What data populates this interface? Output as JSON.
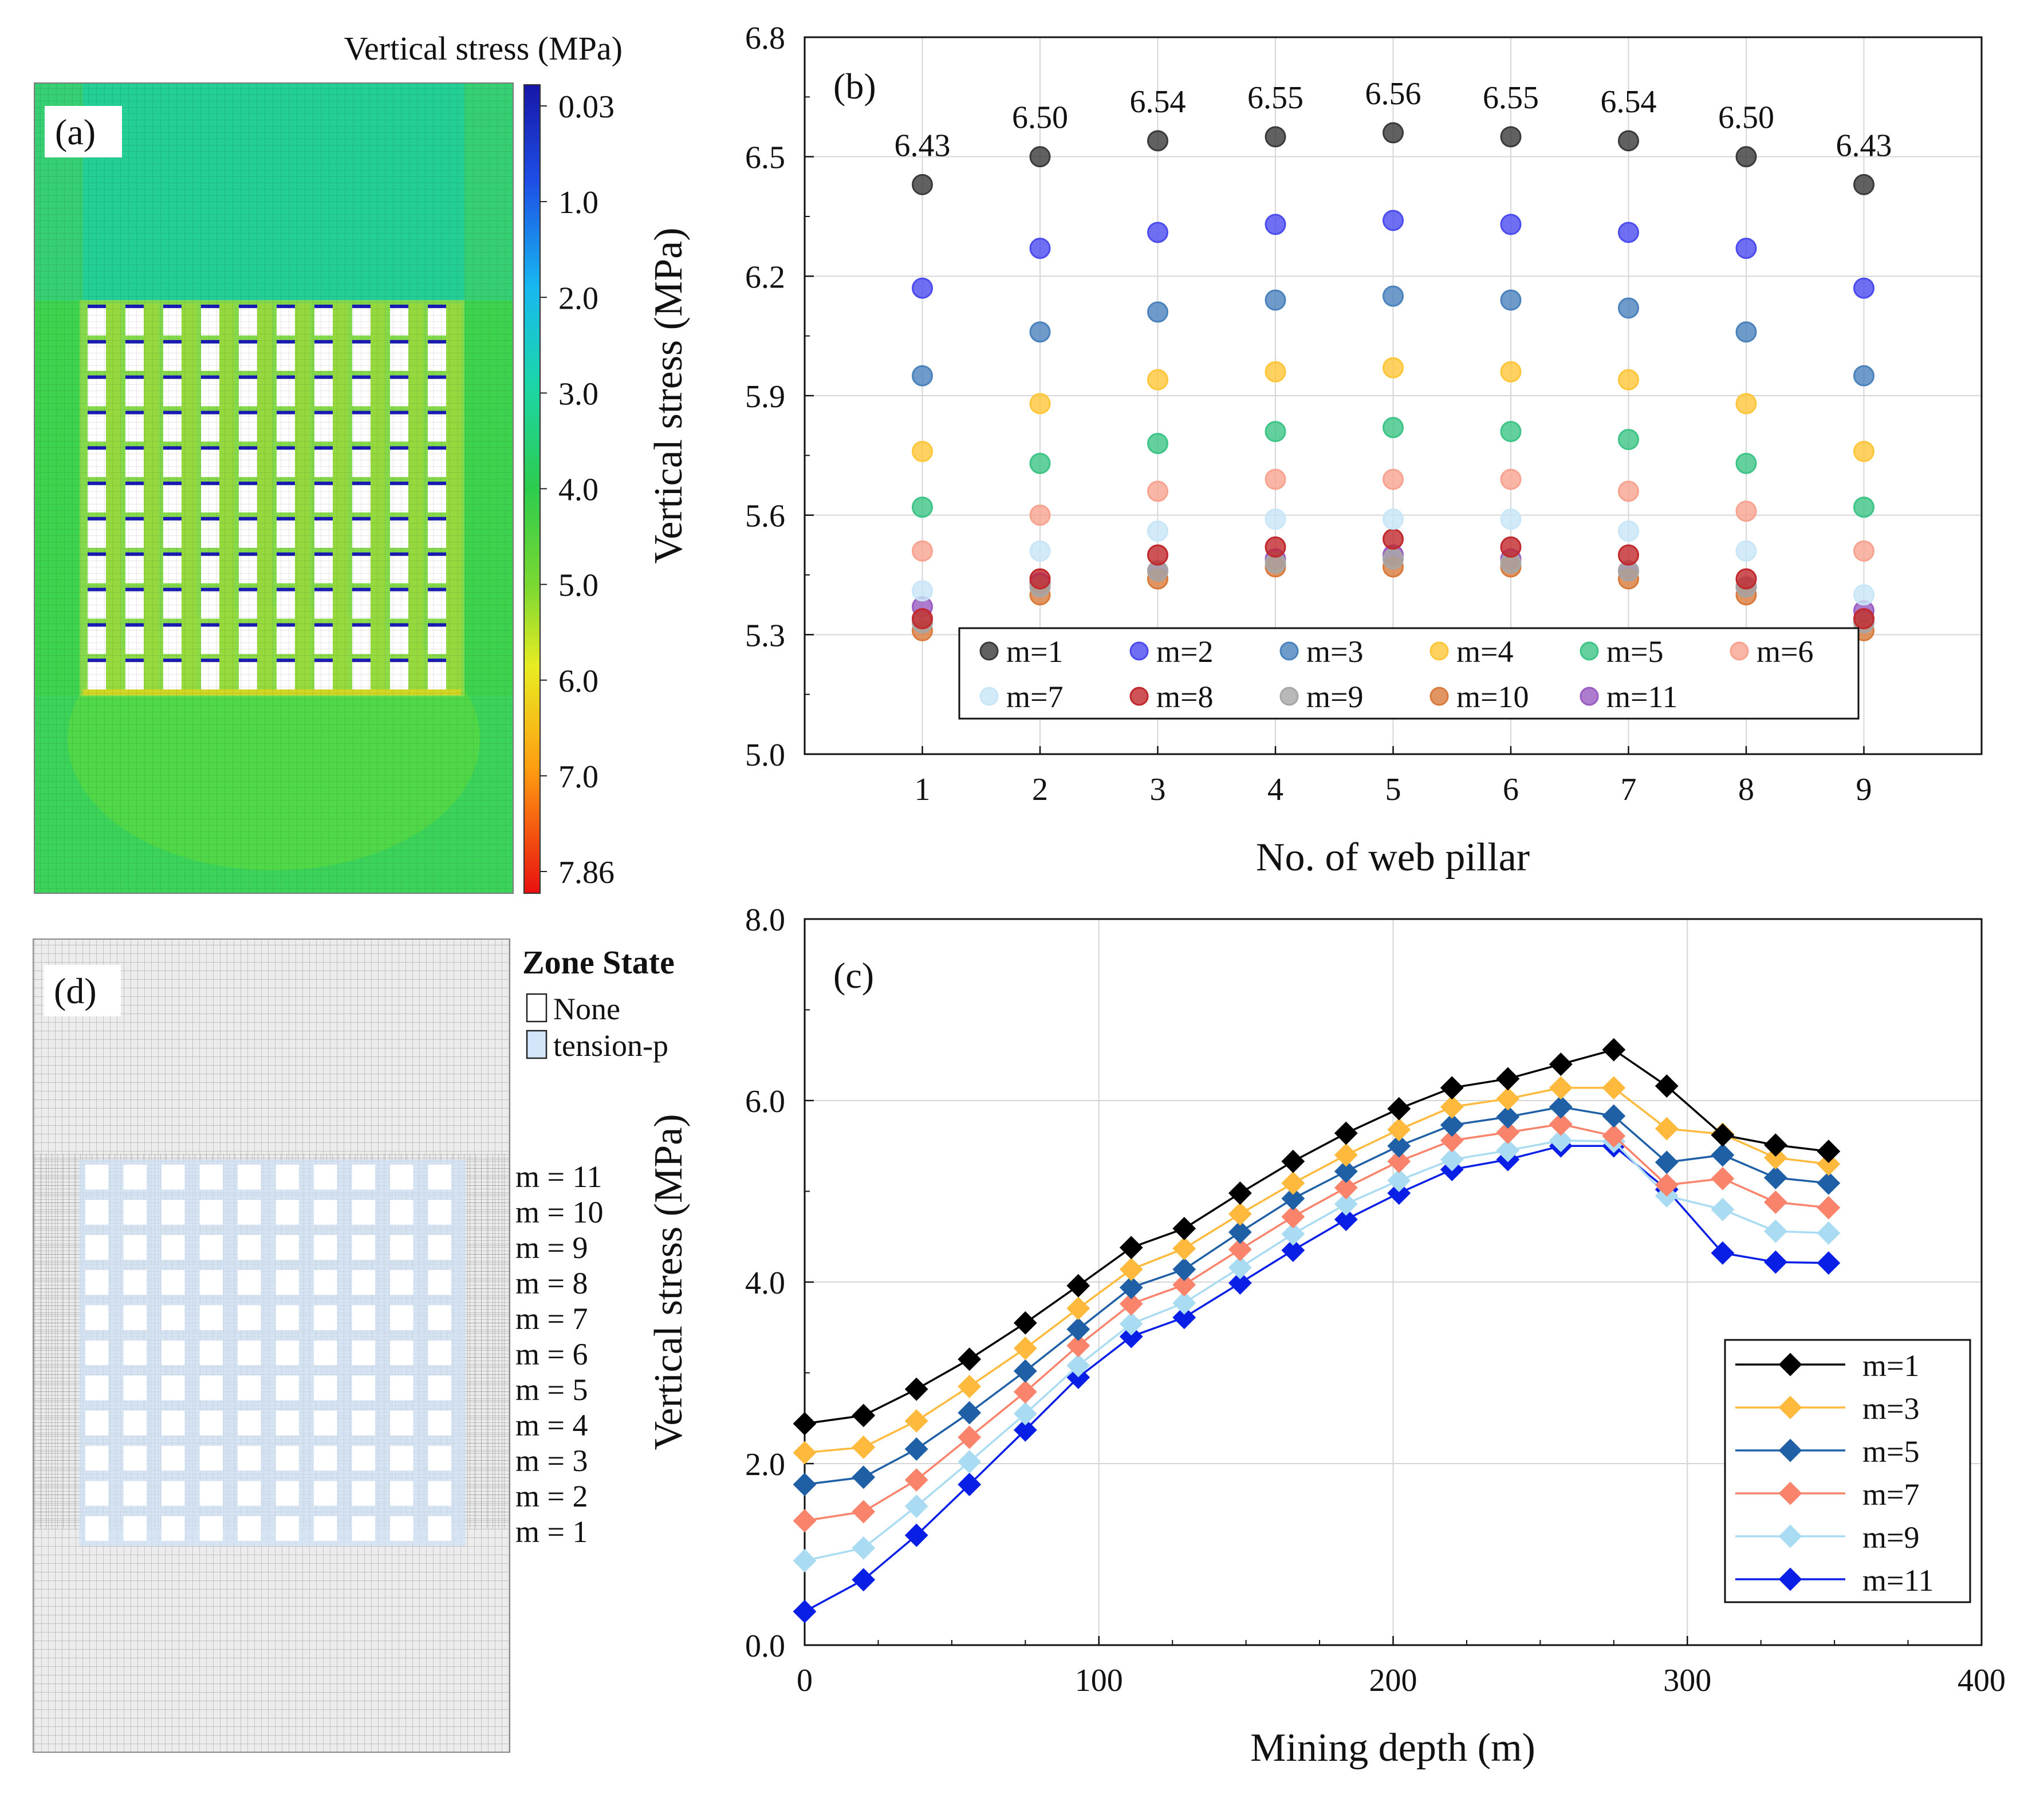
{
  "panel_a": {
    "label": "(a)",
    "colorbar_title": "Vertical stress (MPa)",
    "colorbar_ticks": [
      "0.03",
      "1.0",
      "2.0",
      "3.0",
      "4.0",
      "5.0",
      "6.0",
      "7.0",
      "7.86"
    ],
    "colors": {
      "top": "#24cf96",
      "mid": "#3ed34f",
      "bottom": "#3bd35a",
      "opening": "#ffffff",
      "edge": "#1a1ab4"
    }
  },
  "panel_d": {
    "label": "(d)",
    "legend_title": "Zone State",
    "legend_items": [
      "None",
      "tension-p"
    ],
    "row_labels": [
      "m = 11",
      "m = 10",
      "m = 9",
      "m = 8",
      "m = 7",
      "m = 6",
      "m = 5",
      "m = 4",
      "m = 3",
      "m = 2",
      "m = 1"
    ]
  },
  "chart_data": [
    {
      "id": "b",
      "type": "scatter",
      "panel_label": "(b)",
      "xlabel": "No. of web pillar",
      "ylabel": "Vertical stress (MPa)",
      "xlim": [
        0,
        10
      ],
      "ylim": [
        5.0,
        6.8
      ],
      "x": [
        1,
        2,
        3,
        4,
        5,
        6,
        7,
        8,
        9
      ],
      "xticks": [
        "1",
        "2",
        "3",
        "4",
        "5",
        "6",
        "7",
        "8",
        "9"
      ],
      "yticks": [
        "5.0",
        "5.3",
        "5.6",
        "5.9",
        "6.2",
        "6.5",
        "6.8"
      ],
      "annotations": [
        "6.43",
        "6.50",
        "6.54",
        "6.55",
        "6.56",
        "6.55",
        "6.54",
        "6.50",
        "6.43"
      ],
      "series": [
        {
          "name": "m=1",
          "color": "#3a3a3a",
          "values": [
            6.43,
            6.5,
            6.54,
            6.55,
            6.56,
            6.55,
            6.54,
            6.5,
            6.43
          ]
        },
        {
          "name": "m=2",
          "color": "#4b4bf0",
          "values": [
            6.17,
            6.27,
            6.31,
            6.33,
            6.34,
            6.33,
            6.31,
            6.27,
            6.17
          ]
        },
        {
          "name": "m=3",
          "color": "#4a82bd",
          "values": [
            5.95,
            6.06,
            6.11,
            6.14,
            6.15,
            6.14,
            6.12,
            6.06,
            5.95
          ]
        },
        {
          "name": "m=4",
          "color": "#ffc63a",
          "values": [
            5.76,
            5.88,
            5.94,
            5.96,
            5.97,
            5.96,
            5.94,
            5.88,
            5.76
          ]
        },
        {
          "name": "m=5",
          "color": "#3dc486",
          "values": [
            5.62,
            5.73,
            5.78,
            5.81,
            5.82,
            5.81,
            5.79,
            5.73,
            5.62
          ]
        },
        {
          "name": "m=6",
          "color": "#f7a390",
          "values": [
            5.51,
            5.6,
            5.66,
            5.69,
            5.69,
            5.69,
            5.66,
            5.61,
            5.51
          ]
        },
        {
          "name": "m=7",
          "color": "#c8e6f8",
          "values": [
            5.41,
            5.51,
            5.56,
            5.59,
            5.59,
            5.59,
            5.56,
            5.51,
            5.4
          ]
        },
        {
          "name": "m=8",
          "color": "#c0282c",
          "values": [
            5.34,
            5.44,
            5.5,
            5.52,
            5.54,
            5.52,
            5.5,
            5.44,
            5.34
          ]
        },
        {
          "name": "m=9",
          "color": "#a6a6a6",
          "values": [
            5.33,
            5.42,
            5.46,
            5.48,
            5.49,
            5.48,
            5.46,
            5.42,
            5.33
          ]
        },
        {
          "name": "m=10",
          "color": "#d87a3c",
          "values": [
            5.31,
            5.4,
            5.44,
            5.47,
            5.47,
            5.47,
            5.44,
            5.4,
            5.31
          ]
        },
        {
          "name": "m=11",
          "color": "#9a5bc3",
          "values": [
            5.37,
            5.43,
            5.46,
            5.49,
            5.5,
            5.49,
            5.46,
            5.42,
            5.36
          ]
        }
      ],
      "legend_placement": "bottom-center",
      "grid": true
    },
    {
      "id": "c",
      "type": "line",
      "panel_label": "(c)",
      "xlabel": "Mining depth (m)",
      "ylabel": "Vertical stress (MPa)",
      "xlim": [
        0,
        400
      ],
      "ylim": [
        0.0,
        8.0
      ],
      "xticks": [
        "0",
        "100",
        "200",
        "300",
        "400"
      ],
      "yticks": [
        "0.0",
        "2.0",
        "4.0",
        "6.0",
        "8.0"
      ],
      "x": [
        0,
        20,
        38,
        56,
        75,
        93,
        111,
        129,
        148,
        166,
        184,
        202,
        220,
        239,
        257,
        275,
        293,
        312,
        330,
        348
      ],
      "series": [
        {
          "name": "m=1",
          "color": "#000000",
          "values": [
            2.44,
            2.53,
            2.82,
            3.15,
            3.55,
            3.96,
            4.38,
            4.59,
            4.98,
            5.33,
            5.64,
            5.91,
            6.14,
            6.24,
            6.4,
            6.56,
            6.16,
            5.62,
            5.51,
            5.44
          ]
        },
        {
          "name": "m=3",
          "color": "#ffba3d",
          "values": [
            2.12,
            2.18,
            2.47,
            2.85,
            3.27,
            3.71,
            4.14,
            4.37,
            4.75,
            5.09,
            5.4,
            5.68,
            5.93,
            6.02,
            6.14,
            6.14,
            5.69,
            5.63,
            5.37,
            5.3
          ]
        },
        {
          "name": "m=5",
          "color": "#1f5fa6",
          "values": [
            1.77,
            1.85,
            2.16,
            2.56,
            3.02,
            3.48,
            3.94,
            4.14,
            4.55,
            4.92,
            5.22,
            5.5,
            5.73,
            5.82,
            5.93,
            5.83,
            5.32,
            5.4,
            5.15,
            5.09
          ]
        },
        {
          "name": "m=7",
          "color": "#f9836b",
          "values": [
            1.37,
            1.47,
            1.82,
            2.29,
            2.79,
            3.3,
            3.76,
            3.97,
            4.36,
            4.72,
            5.04,
            5.33,
            5.56,
            5.65,
            5.74,
            5.61,
            5.07,
            5.14,
            4.88,
            4.82
          ]
        },
        {
          "name": "m=9",
          "color": "#a9dcf3",
          "values": [
            0.93,
            1.07,
            1.53,
            2.02,
            2.55,
            3.08,
            3.54,
            3.77,
            4.16,
            4.53,
            4.86,
            5.12,
            5.35,
            5.45,
            5.56,
            5.55,
            4.95,
            4.8,
            4.56,
            4.54
          ]
        },
        {
          "name": "m=11",
          "color": "#0a1fe6",
          "values": [
            0.37,
            0.72,
            1.21,
            1.77,
            2.37,
            2.95,
            3.4,
            3.61,
            3.99,
            4.35,
            4.69,
            4.98,
            5.24,
            5.35,
            5.5,
            5.5,
            5.02,
            4.32,
            4.22,
            4.21
          ]
        }
      ],
      "legend_placement": "bottom-right",
      "grid": true
    }
  ]
}
